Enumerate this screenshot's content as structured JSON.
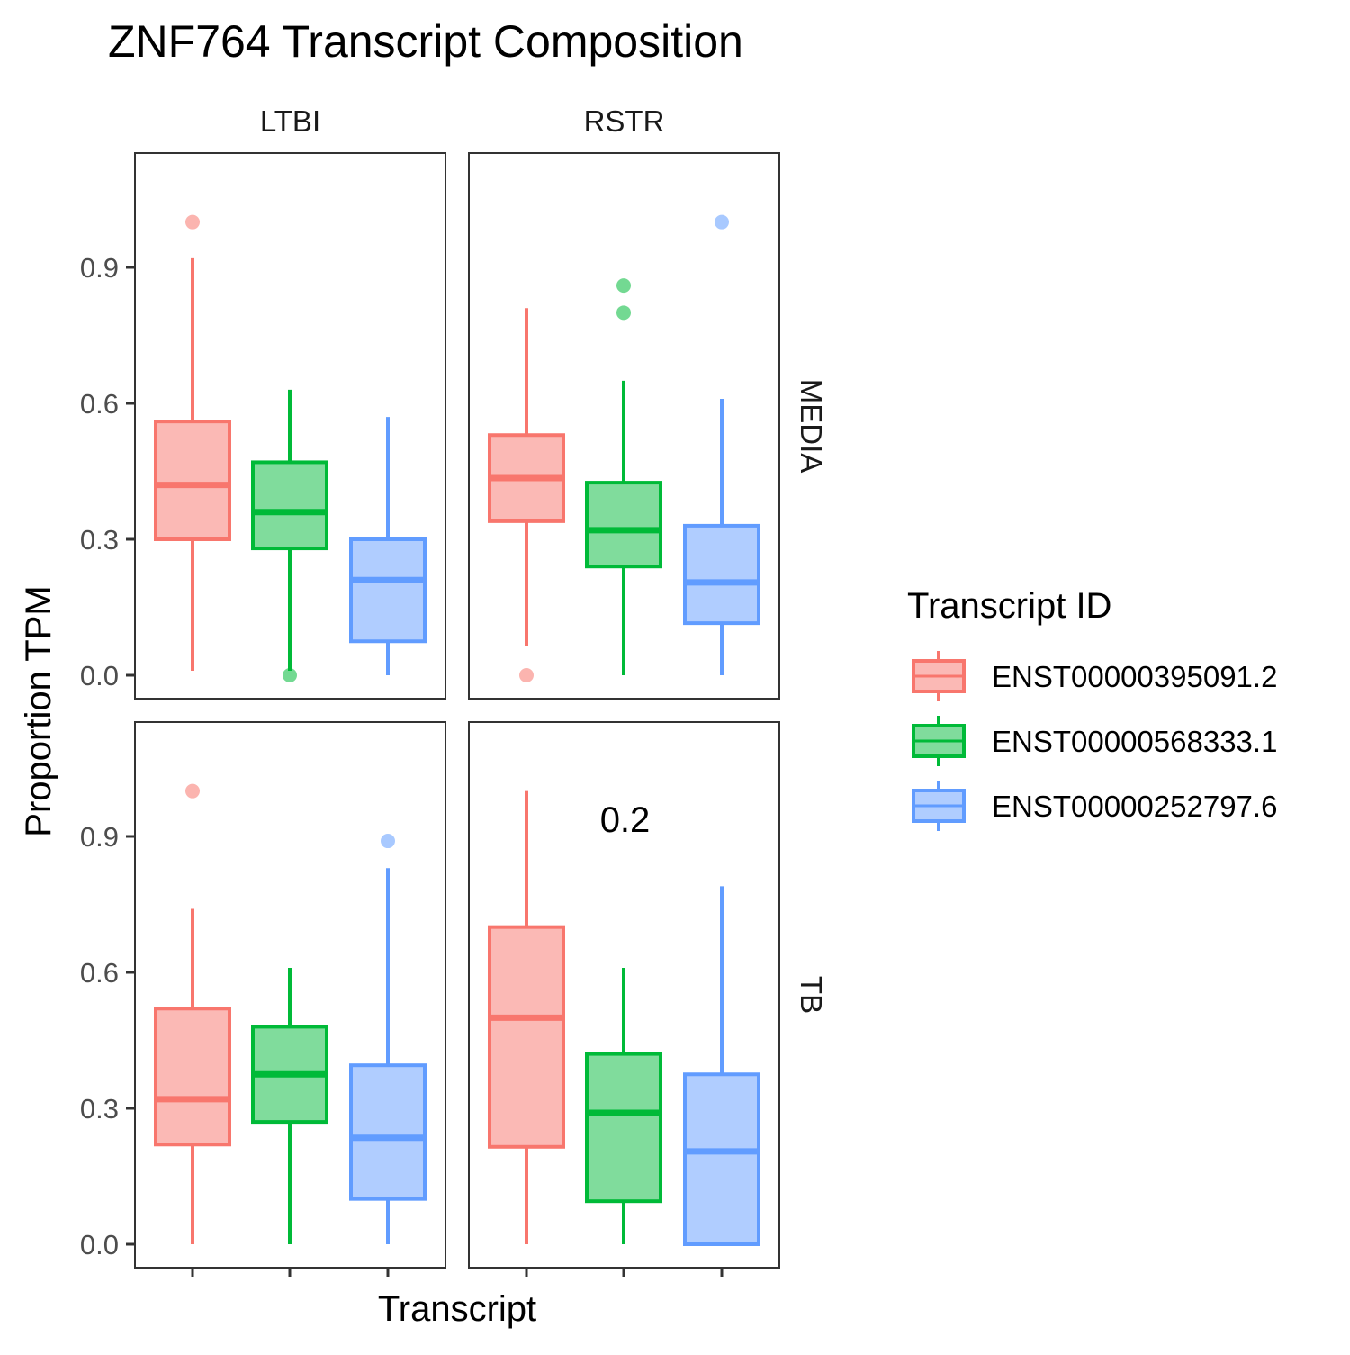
{
  "chart_data": {
    "type": "boxplot",
    "title": "ZNF764 Transcript Composition",
    "xlabel": "Transcript",
    "ylabel": "Proportion TPM",
    "ylim": [
      -0.08,
      1.15
    ],
    "y_ticks": [
      "0.0",
      "0.3",
      "0.6",
      "0.9"
    ],
    "grid": false,
    "legend_position": "right",
    "legend": {
      "title": "Transcript ID",
      "entries": [
        "ENST00000395091.2",
        "ENST00000568333.1",
        "ENST00000252797.6"
      ]
    },
    "series_colors": [
      "#F8766D",
      "#00BA38",
      "#619CFF"
    ],
    "series_fills": [
      "#FBB9B5",
      "#80DC9C",
      "#B0CDFF"
    ],
    "col_facets": [
      "LTBI",
      "RSTR"
    ],
    "row_facets": [
      "MEDIA",
      "TB"
    ],
    "panels": [
      {
        "row": "MEDIA",
        "col": "LTBI",
        "annotation": "",
        "boxes": [
          {
            "transcript": "ENST00000395091.2",
            "lower_whisker": 0.01,
            "q1": 0.3,
            "median": 0.42,
            "q3": 0.56,
            "upper_whisker": 0.92,
            "outliers": [
              1.0
            ]
          },
          {
            "transcript": "ENST00000568333.1",
            "lower_whisker": 0.01,
            "q1": 0.28,
            "median": 0.36,
            "q3": 0.47,
            "upper_whisker": 0.63,
            "outliers": [
              0.0
            ]
          },
          {
            "transcript": "ENST00000252797.6",
            "lower_whisker": 0.0,
            "q1": 0.075,
            "median": 0.21,
            "q3": 0.3,
            "upper_whisker": 0.57,
            "outliers": []
          }
        ]
      },
      {
        "row": "MEDIA",
        "col": "RSTR",
        "annotation": "",
        "boxes": [
          {
            "transcript": "ENST00000395091.2",
            "lower_whisker": 0.065,
            "q1": 0.34,
            "median": 0.435,
            "q3": 0.53,
            "upper_whisker": 0.81,
            "outliers": [
              0.0
            ]
          },
          {
            "transcript": "ENST00000568333.1",
            "lower_whisker": 0.0,
            "q1": 0.24,
            "median": 0.32,
            "q3": 0.425,
            "upper_whisker": 0.65,
            "outliers": [
              0.8,
              0.86
            ]
          },
          {
            "transcript": "ENST00000252797.6",
            "lower_whisker": 0.0,
            "q1": 0.115,
            "median": 0.205,
            "q3": 0.33,
            "upper_whisker": 0.61,
            "outliers": [
              1.0
            ]
          }
        ]
      },
      {
        "row": "TB",
        "col": "LTBI",
        "annotation": "",
        "boxes": [
          {
            "transcript": "ENST00000395091.2",
            "lower_whisker": 0.0,
            "q1": 0.22,
            "median": 0.32,
            "q3": 0.52,
            "upper_whisker": 0.74,
            "outliers": [
              1.0
            ]
          },
          {
            "transcript": "ENST00000568333.1",
            "lower_whisker": 0.0,
            "q1": 0.27,
            "median": 0.375,
            "q3": 0.48,
            "upper_whisker": 0.61,
            "outliers": []
          },
          {
            "transcript": "ENST00000252797.6",
            "lower_whisker": 0.0,
            "q1": 0.1,
            "median": 0.235,
            "q3": 0.395,
            "upper_whisker": 0.83,
            "outliers": [
              0.89
            ]
          }
        ]
      },
      {
        "row": "TB",
        "col": "RSTR",
        "annotation": "0.2",
        "boxes": [
          {
            "transcript": "ENST00000395091.2",
            "lower_whisker": 0.0,
            "q1": 0.215,
            "median": 0.5,
            "q3": 0.7,
            "upper_whisker": 1.0,
            "outliers": []
          },
          {
            "transcript": "ENST00000568333.1",
            "lower_whisker": 0.0,
            "q1": 0.095,
            "median": 0.29,
            "q3": 0.42,
            "upper_whisker": 0.61,
            "outliers": []
          },
          {
            "transcript": "ENST00000252797.6",
            "lower_whisker": 0.0,
            "q1": 0.0,
            "median": 0.205,
            "q3": 0.375,
            "upper_whisker": 0.79,
            "outliers": []
          }
        ]
      }
    ]
  }
}
